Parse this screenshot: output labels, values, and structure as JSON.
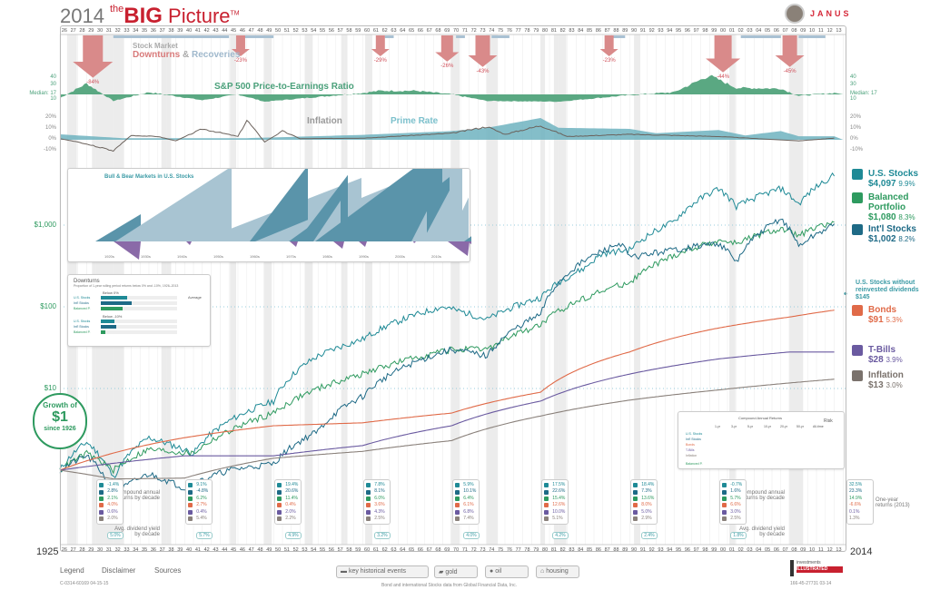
{
  "header": {
    "year": "2014",
    "the": "the",
    "big": "BIG",
    "picture": "Picture",
    "tm": "TM",
    "brand": "JANUS"
  },
  "timeline": {
    "start_label": "1925",
    "end_label": "2014",
    "years": [
      "26",
      "27",
      "28",
      "29",
      "30",
      "31",
      "32",
      "33",
      "34",
      "35",
      "36",
      "37",
      "38",
      "39",
      "40",
      "41",
      "42",
      "43",
      "44",
      "45",
      "46",
      "47",
      "48",
      "49",
      "50",
      "51",
      "52",
      "53",
      "54",
      "55",
      "56",
      "57",
      "58",
      "59",
      "60",
      "61",
      "62",
      "63",
      "64",
      "65",
      "66",
      "67",
      "68",
      "69",
      "70",
      "71",
      "72",
      "73",
      "74",
      "75",
      "76",
      "77",
      "78",
      "79",
      "80",
      "81",
      "82",
      "83",
      "84",
      "85",
      "86",
      "87",
      "88",
      "89",
      "90",
      "91",
      "92",
      "93",
      "94",
      "95",
      "96",
      "97",
      "98",
      "99",
      "00",
      "01",
      "02",
      "03",
      "04",
      "05",
      "06",
      "07",
      "08",
      "09",
      "10",
      "11",
      "12",
      "13"
    ]
  },
  "downturns_title": {
    "line1": "Stock Market",
    "down": "Downturns",
    "amp": "&",
    "rec": "Recoveries"
  },
  "pe_title": "S&P 500 Price-to-Earnings Ratio",
  "pe_axis": {
    "t40": "40",
    "t30": "30",
    "median": "Median: 17",
    "t10": "10"
  },
  "rate_titles": {
    "inflation": "Inflation",
    "prime": "Prime Rate"
  },
  "rate_axis": [
    "20%",
    "10%",
    "0%",
    "-10%"
  ],
  "main_axis": [
    "$1,000",
    "$100",
    "$10"
  ],
  "growth_badge": {
    "l1": "Growth of",
    "l2": "$1",
    "l3": "since 1926"
  },
  "bullbear_title": "Bull & Bear Markets in U.S. Stocks",
  "bullbear_decades": [
    "1920s",
    "1930s",
    "1940s",
    "1950s",
    "1960s",
    "1970s",
    "1980s",
    "1990s",
    "2000s",
    "2010s"
  ],
  "downturn_box": {
    "title": "Downturns",
    "subtitle": "Proportion of 1-year rolling period returns below 0% and -10%, 1926–2013",
    "below0": "Below 0%",
    "below10": "Below -10%",
    "average": "Average",
    "rows": [
      "U.S. Stocks",
      "Int'l Stocks",
      "Balanced P."
    ],
    "vals0": [
      0.34,
      0.4,
      0.28
    ],
    "vals10": [
      0.18,
      0.2,
      0.06
    ]
  },
  "returns_table": {
    "title": "Compound Annual Returns",
    "cols": [
      "1-yr",
      "3-yr",
      "5-yr",
      "10-yr",
      "20-yr",
      "50-yr",
      "All-time"
    ],
    "risk": "Risk",
    "rows": [
      "U.S. Stocks",
      "Int'l Stocks",
      "Bonds",
      "T-Bills",
      "Inflation",
      "Balanced P."
    ]
  },
  "legend": [
    {
      "name": "U.S. Stocks",
      "value": "$4,097",
      "rate": "9.9%",
      "color": "#1f8a96"
    },
    {
      "name": "Balanced Portfolio",
      "value": "$1,080",
      "rate": "8.3%",
      "color": "#2e9a5f"
    },
    {
      "name": "Int'l Stocks",
      "value": "$1,002",
      "rate": "8.2%",
      "color": "#1e6a86"
    },
    {
      "name": "Bonds",
      "value": "$91",
      "rate": "5.3%",
      "color": "#e06a48"
    },
    {
      "name": "T-Bills",
      "value": "$28",
      "rate": "3.9%",
      "color": "#6a5aa0"
    },
    {
      "name": "Inflation",
      "value": "$13",
      "rate": "3.0%",
      "color": "#7a726c"
    }
  ],
  "nodiv": {
    "l1": "U.S. Stocks without",
    "l2": "reinvested dividends",
    "value": "$145"
  },
  "decade_labels": {
    "compound": "Compound annual returns by decade",
    "dividend": "Avg. dividend yield by decade",
    "oneyear": "One-year returns (2013)"
  },
  "decades": [
    {
      "vals": [
        "-1.4%",
        "2.8%",
        "2.1%",
        "4.0%",
        "0.6%",
        "2.0%"
      ],
      "div": "5.0%"
    },
    {
      "vals": [
        "9.1%",
        "-4.8%",
        "6.2%",
        "2.7%",
        "0.4%",
        "5.4%"
      ],
      "div": "5.7%"
    },
    {
      "vals": [
        "19.4%",
        "20.6%",
        "11.4%",
        "0.4%",
        "2.0%",
        "2.2%"
      ],
      "div": "4.9%"
    },
    {
      "vals": [
        "7.8%",
        "8.1%",
        "6.0%",
        "3.6%",
        "4.3%",
        "2.5%"
      ],
      "div": "3.2%"
    },
    {
      "vals": [
        "5.9%",
        "10.1%",
        "6.4%",
        "6.1%",
        "6.8%",
        "7.4%"
      ],
      "div": "4.0%"
    },
    {
      "vals": [
        "17.5%",
        "22.6%",
        "15.4%",
        "12.6%",
        "10.0%",
        "5.1%"
      ],
      "div": "4.2%"
    },
    {
      "vals": [
        "18.4%",
        "7.3%",
        "13.6%",
        "8.0%",
        "5.0%",
        "2.9%"
      ],
      "div": "2.4%"
    },
    {
      "vals": [
        "-0.7%",
        "1.6%",
        "5.7%",
        "6.6%",
        "3.0%",
        "2.5%"
      ],
      "div": "1.8%"
    }
  ],
  "oneyear": [
    "32.5%",
    "23.3%",
    "14.9%",
    "-6.6%",
    "0.1%",
    "1.3%"
  ],
  "footer": {
    "legend": "Legend",
    "disclaimer": "Disclaimer",
    "sources": "Sources",
    "code_left": "C-0314-60169 04-15-15",
    "source_note": "Bond and international Stocks data from Global Financial Data, Inc.",
    "code_right": "166-45-27731 03-14",
    "btn_events": "key historical events",
    "btn_gold": "gold",
    "btn_oil": "oil",
    "btn_housing": "housing",
    "ii1": "investments",
    "ii2": "ILLUSTRATED"
  },
  "chart_data": {
    "type": "line",
    "title": "Growth of $1 since 1926",
    "yscale": "log",
    "ylim": [
      0.3,
      10000
    ],
    "xlim": [
      1926,
      2014
    ],
    "series": [
      {
        "name": "U.S. Stocks",
        "color": "#1f8a96",
        "points": [
          [
            1926,
            1
          ],
          [
            1929,
            2.2
          ],
          [
            1932,
            0.8
          ],
          [
            1936,
            2.5
          ],
          [
            1941,
            1.6
          ],
          [
            1945,
            4
          ],
          [
            1950,
            7
          ],
          [
            1955,
            25
          ],
          [
            1960,
            40
          ],
          [
            1966,
            80
          ],
          [
            1969,
            100
          ],
          [
            1974,
            70
          ],
          [
            1980,
            130
          ],
          [
            1985,
            300
          ],
          [
            1987,
            450
          ],
          [
            1990,
            500
          ],
          [
            1995,
            1100
          ],
          [
            2000,
            2800
          ],
          [
            2002,
            1700
          ],
          [
            2007,
            2800
          ],
          [
            2009,
            1800
          ],
          [
            2013,
            4097
          ]
        ]
      },
      {
        "name": "Balanced Portfolio",
        "color": "#2e9a5f",
        "points": [
          [
            1926,
            1
          ],
          [
            1929,
            1.6
          ],
          [
            1932,
            1
          ],
          [
            1936,
            1.8
          ],
          [
            1941,
            1.6
          ],
          [
            1945,
            3
          ],
          [
            1950,
            5
          ],
          [
            1960,
            15
          ],
          [
            1970,
            30
          ],
          [
            1974,
            30
          ],
          [
            1980,
            60
          ],
          [
            1990,
            200
          ],
          [
            2000,
            650
          ],
          [
            2002,
            600
          ],
          [
            2007,
            900
          ],
          [
            2009,
            750
          ],
          [
            2013,
            1080
          ]
        ]
      },
      {
        "name": "Int'l Stocks",
        "color": "#1e6a86",
        "points": [
          [
            1926,
            1
          ],
          [
            1929,
            1.5
          ],
          [
            1932,
            0.5
          ],
          [
            1936,
            0.9
          ],
          [
            1940,
            0.6
          ],
          [
            1945,
            1
          ],
          [
            1950,
            1.2
          ],
          [
            1955,
            3
          ],
          [
            1960,
            8
          ],
          [
            1970,
            30
          ],
          [
            1974,
            25
          ],
          [
            1980,
            80
          ],
          [
            1989,
            600
          ],
          [
            1990,
            400
          ],
          [
            2000,
            600
          ],
          [
            2002,
            350
          ],
          [
            2007,
            1200
          ],
          [
            2009,
            550
          ],
          [
            2013,
            1002
          ]
        ]
      },
      {
        "name": "Bonds",
        "color": "#e06a48",
        "points": [
          [
            1926,
            1
          ],
          [
            1930,
            1.4
          ],
          [
            1940,
            2.5
          ],
          [
            1950,
            3.5
          ],
          [
            1960,
            3.8
          ],
          [
            1970,
            5
          ],
          [
            1980,
            9
          ],
          [
            1990,
            28
          ],
          [
            2000,
            55
          ],
          [
            2008,
            75
          ],
          [
            2013,
            91
          ]
        ]
      },
      {
        "name": "T-Bills",
        "color": "#6a5aa0",
        "points": [
          [
            1926,
            1
          ],
          [
            1940,
            1.5
          ],
          [
            1950,
            1.5
          ],
          [
            1960,
            2
          ],
          [
            1970,
            3.5
          ],
          [
            1980,
            7
          ],
          [
            1990,
            15
          ],
          [
            2000,
            23
          ],
          [
            2008,
            28
          ],
          [
            2013,
            28
          ]
        ]
      },
      {
        "name": "Inflation",
        "color": "#8a817b",
        "points": [
          [
            1926,
            1
          ],
          [
            1932,
            0.78
          ],
          [
            1940,
            0.8
          ],
          [
            1950,
            1.4
          ],
          [
            1960,
            1.7
          ],
          [
            1970,
            2.3
          ],
          [
            1980,
            4.6
          ],
          [
            1990,
            7.2
          ],
          [
            2000,
            9.6
          ],
          [
            2013,
            13
          ]
        ]
      }
    ],
    "pe_ratio": [
      [
        1926,
        12
      ],
      [
        1929,
        32
      ],
      [
        1932,
        8
      ],
      [
        1936,
        20
      ],
      [
        1942,
        9
      ],
      [
        1946,
        17
      ],
      [
        1949,
        7
      ],
      [
        1960,
        19
      ],
      [
        1962,
        22
      ],
      [
        1966,
        22
      ],
      [
        1970,
        17
      ],
      [
        1974,
        8
      ],
      [
        1982,
        7
      ],
      [
        1990,
        16
      ],
      [
        1995,
        20
      ],
      [
        1999,
        43
      ],
      [
        2002,
        26
      ],
      [
        2007,
        25
      ],
      [
        2009,
        15
      ],
      [
        2013,
        19
      ]
    ],
    "inflation_pct": [
      [
        1926,
        1
      ],
      [
        1928,
        -2
      ],
      [
        1932,
        -10
      ],
      [
        1934,
        4
      ],
      [
        1937,
        3
      ],
      [
        1939,
        -1
      ],
      [
        1942,
        10
      ],
      [
        1946,
        3
      ],
      [
        1947,
        18
      ],
      [
        1949,
        -2
      ],
      [
        1951,
        8
      ],
      [
        1953,
        1
      ],
      [
        1960,
        1.5
      ],
      [
        1970,
        6
      ],
      [
        1974,
        12
      ],
      [
        1976,
        5
      ],
      [
        1980,
        13
      ],
      [
        1983,
        3
      ],
      [
        1990,
        5
      ],
      [
        2000,
        3
      ],
      [
        2009,
        -1
      ],
      [
        2013,
        1.5
      ]
    ],
    "prime_pct": [
      [
        1926,
        5
      ],
      [
        1933,
        1.5
      ],
      [
        1947,
        1.5
      ],
      [
        1960,
        4.5
      ],
      [
        1970,
        8
      ],
      [
        1974,
        11
      ],
      [
        1980,
        20
      ],
      [
        1982,
        11
      ],
      [
        1990,
        10
      ],
      [
        1993,
        6
      ],
      [
        2000,
        9
      ],
      [
        2003,
        4
      ],
      [
        2007,
        8
      ],
      [
        2009,
        3.25
      ],
      [
        2013,
        3.25
      ]
    ],
    "downturns": [
      {
        "year": 1929.7,
        "pct": "-84%",
        "size": 3
      },
      {
        "year": 1946.3,
        "pct": "-23%",
        "size": 1
      },
      {
        "year": 1962,
        "pct": "-29%",
        "size": 1
      },
      {
        "year": 1969.5,
        "pct": "-26%",
        "size": 1.5
      },
      {
        "year": 1973.5,
        "pct": "-43%",
        "size": 2
      },
      {
        "year": 1987.7,
        "pct": "-23%",
        "size": 1
      },
      {
        "year": 2000.5,
        "pct": "-44%",
        "size": 2.5
      },
      {
        "year": 2008,
        "pct": "-45%",
        "size": 2
      }
    ],
    "recoveries": [
      [
        1932,
        1945
      ],
      [
        1946.5,
        1950
      ],
      [
        1962.5,
        1963.5
      ],
      [
        1970.5,
        1971.5
      ],
      [
        1974.5,
        1976.5
      ],
      [
        1987.8,
        1989.5
      ],
      [
        2002.5,
        2007
      ],
      [
        2009,
        2012
      ]
    ],
    "recessions": [
      [
        1926.8,
        1927.9
      ],
      [
        1929.6,
        1933.2
      ],
      [
        1937.4,
        1938.5
      ],
      [
        1945.1,
        1945.8
      ],
      [
        1948.9,
        1949.8
      ],
      [
        1953.5,
        1954.4
      ],
      [
        1957.6,
        1958.3
      ],
      [
        1960.3,
        1961.1
      ],
      [
        1969.9,
        1970.9
      ],
      [
        1973.9,
        1975.2
      ],
      [
        1980,
        1980.5
      ],
      [
        1981.5,
        1982.9
      ],
      [
        1990.5,
        1991.2
      ],
      [
        2001.2,
        2001.9
      ],
      [
        2007.9,
        2009.5
      ]
    ]
  }
}
